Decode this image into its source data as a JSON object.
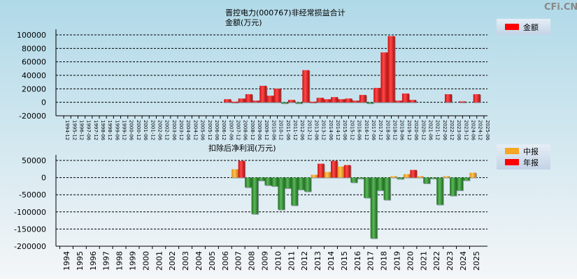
{
  "watermark": "CFi.CN",
  "colors": {
    "positive": "#ee1c1c",
    "negative": "#2a8a2a",
    "interim": "#f5a623",
    "annual": "#ff0000"
  },
  "chart_data": [
    {
      "type": "bar",
      "title": "晋控电力(000767)非经常损益合计",
      "ylabel": "金额(万元)",
      "legend": [
        "金额"
      ],
      "legend_placement": "top-right",
      "ylim": [
        -20000,
        100000
      ],
      "yticks": [
        100000,
        80000,
        60000,
        40000,
        20000,
        0,
        -20000
      ],
      "grid": true,
      "categories": [
        "1994-12",
        "1995-12",
        "1996-12",
        "1997-06",
        "1997-12",
        "1998-06",
        "1998-12",
        "1999-06",
        "1999-12",
        "2000-06",
        "2000-12",
        "2001-06",
        "2001-12",
        "2002-06",
        "2002-12",
        "2003-06",
        "2003-12",
        "2004-06",
        "2004-12",
        "2005-06",
        "2005-12",
        "2006-06",
        "2006-12",
        "2007-06",
        "2007-12",
        "2008-06",
        "2008-12",
        "2009-06",
        "2009-12",
        "2010-06",
        "2010-12",
        "2011-06",
        "2011-12",
        "2012-06",
        "2012-12",
        "2013-06",
        "2013-12",
        "2014-06",
        "2014-12",
        "2015-06",
        "2015-12",
        "2016-06",
        "2016-12",
        "2017-06",
        "2017-12",
        "2018-06",
        "2018-12",
        "2019-06",
        "2019-12",
        "2020-06",
        "2020-12",
        "2021-06",
        "2021-12",
        "2022-06",
        "2022-12",
        "2023-06",
        "2023-12",
        "2024-06",
        "2024-12",
        "2025-06"
      ],
      "values": [
        0,
        0,
        0,
        0,
        0,
        0,
        0,
        0,
        0,
        0,
        0,
        0,
        0,
        0,
        0,
        0,
        0,
        0,
        0,
        0,
        0,
        0,
        0,
        4600,
        1000,
        5600,
        12000,
        2500,
        24500,
        9800,
        20300,
        -1000,
        3500,
        -1000,
        47700,
        1000,
        6700,
        4600,
        7700,
        4600,
        5600,
        2500,
        10900,
        -1000,
        21400,
        74000,
        98200,
        2500,
        13000,
        3500,
        0,
        0,
        0,
        0,
        12000,
        0,
        1400,
        0,
        12000,
        0
      ]
    },
    {
      "type": "bar",
      "title": "扣除后净利润(万元)",
      "legend": [
        "中报",
        "年报"
      ],
      "legend_placement": "top-right",
      "ylim": [
        -200000,
        50000
      ],
      "yticks": [
        50000,
        0,
        -50000,
        -100000,
        -150000,
        -200000
      ],
      "grid": true,
      "categories": [
        "1994",
        "1995",
        "1996",
        "1997",
        "1998",
        "1999",
        "2000",
        "2001",
        "2002",
        "2003",
        "2004",
        "2005",
        "2006",
        "2007",
        "2008",
        "2009",
        "2010",
        "2011",
        "2012",
        "2013",
        "2014",
        "2015",
        "2016",
        "2017",
        "2018",
        "2019",
        "2020",
        "2021",
        "2022",
        "2023",
        "2024",
        "2025"
      ],
      "series": [
        {
          "name": "中报",
          "values": [
            0,
            0,
            0,
            0,
            0,
            0,
            0,
            0,
            0,
            0,
            0,
            0,
            0,
            24300,
            -28400,
            -8800,
            -25000,
            -31000,
            -35000,
            8100,
            16200,
            32400,
            -14200,
            -58800,
            -37200,
            4000,
            10100,
            4000,
            -1000,
            4000,
            -37200,
            14200
          ]
        },
        {
          "name": "年报",
          "values": [
            0,
            0,
            0,
            0,
            0,
            0,
            0,
            0,
            0,
            0,
            0,
            0,
            0,
            48600,
            -106000,
            -22300,
            -93200,
            -81000,
            -40500,
            40500,
            48600,
            36500,
            -1000,
            -177000,
            -64900,
            -4000,
            22300,
            -16900,
            -79000,
            -52700,
            -8100,
            null
          ]
        }
      ]
    }
  ]
}
